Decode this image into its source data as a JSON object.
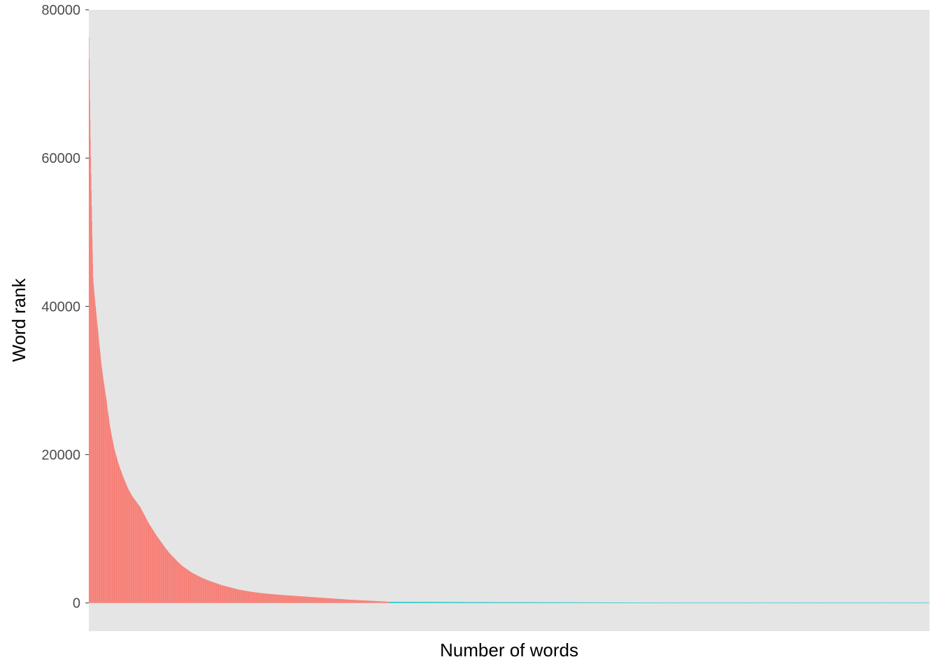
{
  "chart_data": {
    "type": "bar",
    "title": "",
    "xlabel": "Number of words",
    "ylabel": "Word rank",
    "ylim": [
      -3800,
      80000
    ],
    "yticks": [
      0,
      20000,
      40000,
      60000,
      80000
    ],
    "ytick_labels": [
      "0",
      "20000",
      "40000",
      "60000",
      "80000"
    ],
    "x_tick_labels_shown": false,
    "grid": false,
    "legend": "none",
    "panel_background": "#e5e5e5",
    "series": [
      {
        "color": "#f8766d",
        "bar_count": 1000,
        "values_sorted_descending": [
          76300,
          43400,
          37400,
          31700,
          27700,
          23500,
          20600,
          18600,
          17000,
          15600,
          14500,
          13700,
          12900,
          11800,
          10700,
          9800,
          8900,
          8100,
          7300,
          6600,
          6000,
          5400,
          4900,
          4500,
          4100,
          3800,
          3500,
          3250,
          3000,
          2800,
          2600,
          2400,
          2250,
          2100,
          1950,
          1800,
          1700,
          1600,
          1500,
          1420,
          1350,
          1290,
          1230,
          1180,
          1130,
          1080,
          1040,
          1000,
          960,
          920,
          880,
          840,
          800,
          760,
          720,
          680,
          640,
          600,
          560,
          520,
          480,
          440,
          410,
          380,
          350,
          320,
          290,
          260,
          230,
          200,
          160
        ]
      },
      {
        "color": "#00bfc4",
        "bar_count": 1800,
        "values_sorted_descending": [
          150,
          130,
          110,
          95,
          80,
          65,
          55,
          45,
          35,
          28,
          20,
          15
        ]
      }
    ]
  }
}
